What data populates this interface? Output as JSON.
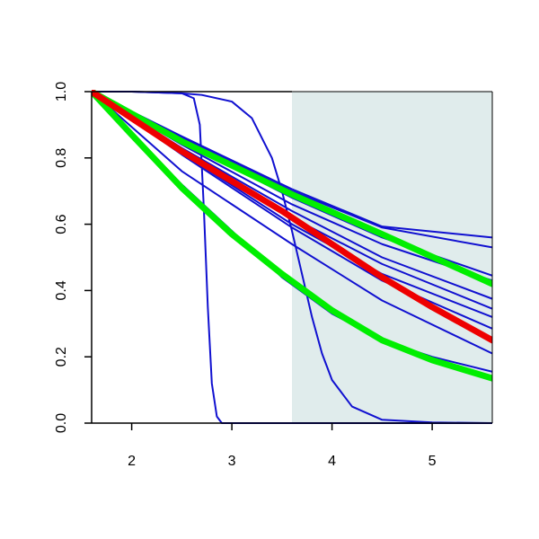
{
  "chart_data": {
    "type": "line",
    "title": "",
    "xlabel": "",
    "ylabel": "",
    "xlim": [
      1.6,
      5.6
    ],
    "ylim": [
      0.0,
      1.0
    ],
    "x_ticks": [
      2,
      3,
      4,
      5
    ],
    "y_ticks": [
      0.0,
      0.2,
      0.4,
      0.6,
      0.8,
      1.0
    ],
    "x_tick_labels": [
      "2",
      "3",
      "4",
      "5"
    ],
    "y_tick_labels": [
      "0.0",
      "0.2",
      "0.4",
      "0.6",
      "0.8",
      "1.0"
    ],
    "grid": false,
    "legend": "none",
    "shaded_region": {
      "x_range": [
        3.6,
        5.6
      ],
      "color": "#e0ecec"
    },
    "series": [
      {
        "color": "#1010d0",
        "width": "thin",
        "x": [
          1.6,
          2.0,
          2.5,
          2.62,
          2.68,
          2.72,
          2.76,
          2.8,
          2.85,
          2.9,
          3.0,
          5.6
        ],
        "y": [
          1.0,
          1.0,
          0.995,
          0.98,
          0.9,
          0.65,
          0.35,
          0.12,
          0.02,
          0.0,
          0.0,
          0.0
        ]
      },
      {
        "color": "#1010d0",
        "width": "thin",
        "x": [
          1.6,
          2.0,
          2.5,
          2.7,
          3.0,
          3.2,
          3.4,
          3.5,
          3.6,
          3.7,
          3.8,
          3.9,
          4.0,
          4.2,
          4.5,
          5.0,
          5.6
        ],
        "y": [
          1.0,
          1.0,
          0.995,
          0.99,
          0.97,
          0.92,
          0.8,
          0.7,
          0.58,
          0.45,
          0.32,
          0.21,
          0.13,
          0.05,
          0.01,
          0.002,
          0.0
        ]
      },
      {
        "color": "#1010d0",
        "width": "thin",
        "x": [
          1.6,
          2.5,
          3.6,
          4.5,
          5.6
        ],
        "y": [
          1.0,
          0.865,
          0.706,
          0.593,
          0.56
        ]
      },
      {
        "color": "#1010d0",
        "width": "thin",
        "x": [
          1.6,
          2.5,
          3.6,
          4.5,
          5.6
        ],
        "y": [
          1.0,
          0.86,
          0.7,
          0.59,
          0.53
        ]
      },
      {
        "color": "#1010d0",
        "width": "thin",
        "x": [
          1.6,
          2.5,
          3.6,
          4.5,
          5.6
        ],
        "y": [
          1.0,
          0.85,
          0.68,
          0.56,
          0.445
        ]
      },
      {
        "color": "#1010d0",
        "width": "thin",
        "x": [
          1.6,
          2.5,
          3.6,
          4.5,
          5.6
        ],
        "y": [
          1.0,
          0.84,
          0.66,
          0.54,
          0.43
        ]
      },
      {
        "color": "#1010d0",
        "width": "thin",
        "x": [
          1.6,
          2.5,
          3.6,
          4.5,
          5.6
        ],
        "y": [
          1.0,
          0.83,
          0.64,
          0.5,
          0.375
        ]
      },
      {
        "color": "#1010d0",
        "width": "thin",
        "x": [
          1.6,
          2.5,
          3.6,
          4.5,
          5.6
        ],
        "y": [
          1.0,
          0.82,
          0.62,
          0.48,
          0.345
        ]
      },
      {
        "color": "#1010d0",
        "width": "thin",
        "x": [
          1.6,
          2.5,
          3.6,
          4.5,
          5.6
        ],
        "y": [
          1.0,
          0.815,
          0.6,
          0.45,
          0.32
        ]
      },
      {
        "color": "#1010d0",
        "width": "thin",
        "x": [
          1.6,
          2.5,
          3.6,
          4.5,
          5.6
        ],
        "y": [
          1.0,
          0.81,
          0.59,
          0.43,
          0.285
        ]
      },
      {
        "color": "#1010d0",
        "width": "thin",
        "x": [
          1.6,
          2.5,
          3.6,
          4.5,
          5.6
        ],
        "y": [
          1.0,
          0.76,
          0.54,
          0.37,
          0.21
        ]
      },
      {
        "color": "#1010d0",
        "width": "thin",
        "x": [
          1.6,
          2.0,
          2.5,
          3.0,
          3.5,
          4.0,
          4.5,
          5.0,
          5.6
        ],
        "y": [
          1.0,
          0.87,
          0.72,
          0.58,
          0.44,
          0.33,
          0.25,
          0.2,
          0.155
        ]
      },
      {
        "color": "#00ee00",
        "width": "thick",
        "x": [
          1.6,
          2.5,
          3.6,
          4.5,
          5.6
        ],
        "y": [
          1.0,
          0.85,
          0.69,
          0.57,
          0.42
        ]
      },
      {
        "color": "#00ee00",
        "width": "thick",
        "x": [
          1.6,
          2.0,
          2.5,
          3.0,
          3.5,
          4.0,
          4.5,
          5.0,
          5.6
        ],
        "y": [
          1.0,
          0.87,
          0.71,
          0.57,
          0.45,
          0.34,
          0.25,
          0.19,
          0.135
        ]
      },
      {
        "color": "#ee0000",
        "width": "thick",
        "x": [
          1.6,
          2.0,
          2.5,
          3.0,
          3.5,
          4.0,
          4.5,
          5.0,
          5.6
        ],
        "y": [
          1.0,
          0.92,
          0.82,
          0.73,
          0.64,
          0.54,
          0.44,
          0.35,
          0.25
        ]
      }
    ]
  }
}
